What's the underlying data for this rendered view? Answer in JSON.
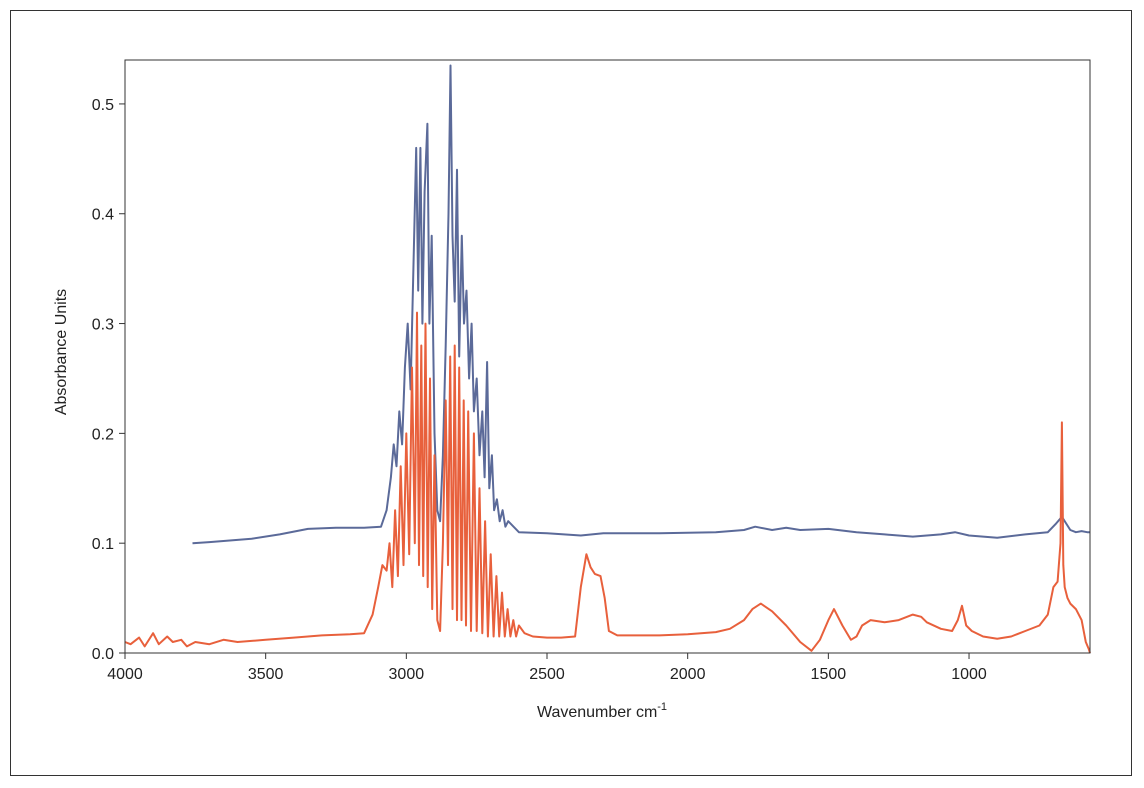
{
  "chart_data": {
    "type": "line",
    "title": "",
    "xlabel": "Wavenumber cm",
    "xlabel_superscript": "-1",
    "ylabel": "Absorbance Units",
    "xlim": [
      4000,
      570
    ],
    "ylim": [
      0.0,
      0.54
    ],
    "x_reversed": true,
    "grid": false,
    "legend": "none",
    "x_ticks": [
      "4000",
      "3500",
      "3000",
      "2500",
      "2000",
      "1500",
      "1000"
    ],
    "x_tick_values": [
      4000,
      3500,
      3000,
      2500,
      2000,
      1500,
      1000
    ],
    "y_ticks": [
      "0.0",
      "0.1",
      "0.2",
      "0.3",
      "0.4",
      "0.5"
    ],
    "y_tick_values": [
      0.0,
      0.1,
      0.2,
      0.3,
      0.4,
      0.5
    ],
    "series": [
      {
        "color": "#5b6a99",
        "x": [
          3760,
          3700,
          3650,
          3550,
          3450,
          3350,
          3250,
          3150,
          3090,
          3070,
          3055,
          3045,
          3035,
          3025,
          3015,
          3005,
          2995,
          2985,
          2975,
          2965,
          2958,
          2950,
          2943,
          2935,
          2925,
          2918,
          2910,
          2900,
          2890,
          2880,
          2870,
          2860,
          2850,
          2843,
          2836,
          2828,
          2820,
          2812,
          2803,
          2795,
          2786,
          2777,
          2768,
          2760,
          2750,
          2740,
          2730,
          2722,
          2713,
          2705,
          2696,
          2688,
          2678,
          2668,
          2658,
          2648,
          2638,
          2600,
          2500,
          2380,
          2300,
          2100,
          1900,
          1800,
          1760,
          1700,
          1650,
          1600,
          1500,
          1400,
          1300,
          1200,
          1100,
          1050,
          1000,
          900,
          800,
          720,
          690,
          670,
          655,
          640,
          620,
          600,
          580,
          570
        ],
        "y": [
          0.1,
          0.101,
          0.102,
          0.104,
          0.108,
          0.113,
          0.114,
          0.114,
          0.115,
          0.13,
          0.16,
          0.19,
          0.17,
          0.22,
          0.19,
          0.26,
          0.3,
          0.24,
          0.35,
          0.46,
          0.33,
          0.46,
          0.3,
          0.42,
          0.482,
          0.3,
          0.38,
          0.2,
          0.13,
          0.12,
          0.18,
          0.28,
          0.4,
          0.535,
          0.38,
          0.32,
          0.44,
          0.27,
          0.38,
          0.3,
          0.33,
          0.25,
          0.3,
          0.22,
          0.25,
          0.18,
          0.22,
          0.16,
          0.265,
          0.15,
          0.18,
          0.13,
          0.14,
          0.12,
          0.13,
          0.115,
          0.12,
          0.11,
          0.109,
          0.107,
          0.109,
          0.109,
          0.11,
          0.112,
          0.115,
          0.112,
          0.114,
          0.112,
          0.113,
          0.11,
          0.108,
          0.106,
          0.108,
          0.11,
          0.107,
          0.105,
          0.108,
          0.11,
          0.118,
          0.124,
          0.118,
          0.112,
          0.11,
          0.111,
          0.11,
          0.11
        ]
      },
      {
        "color": "#e8603c",
        "x": [
          4000,
          3980,
          3950,
          3930,
          3900,
          3880,
          3850,
          3830,
          3800,
          3780,
          3750,
          3700,
          3650,
          3600,
          3550,
          3500,
          3400,
          3300,
          3200,
          3150,
          3120,
          3100,
          3085,
          3070,
          3060,
          3050,
          3040,
          3030,
          3020,
          3010,
          3000,
          2990,
          2980,
          2970,
          2962,
          2955,
          2947,
          2940,
          2932,
          2924,
          2916,
          2908,
          2900,
          2890,
          2880,
          2870,
          2860,
          2852,
          2844,
          2836,
          2828,
          2820,
          2812,
          2804,
          2796,
          2788,
          2780,
          2770,
          2760,
          2750,
          2740,
          2730,
          2720,
          2710,
          2700,
          2690,
          2680,
          2670,
          2660,
          2650,
          2640,
          2630,
          2620,
          2610,
          2600,
          2580,
          2550,
          2500,
          2450,
          2400,
          2380,
          2360,
          2345,
          2330,
          2310,
          2295,
          2280,
          2250,
          2200,
          2100,
          2000,
          1900,
          1850,
          1800,
          1770,
          1740,
          1700,
          1650,
          1600,
          1560,
          1530,
          1500,
          1480,
          1450,
          1420,
          1400,
          1380,
          1350,
          1300,
          1250,
          1200,
          1170,
          1150,
          1100,
          1060,
          1040,
          1025,
          1010,
          990,
          950,
          900,
          850,
          800,
          750,
          720,
          700,
          685,
          675,
          670,
          665,
          660,
          650,
          640,
          620,
          600,
          585,
          575,
          570
        ],
        "y": [
          0.01,
          0.008,
          0.014,
          0.006,
          0.018,
          0.008,
          0.015,
          0.01,
          0.012,
          0.006,
          0.01,
          0.008,
          0.012,
          0.01,
          0.011,
          0.012,
          0.014,
          0.016,
          0.017,
          0.018,
          0.035,
          0.06,
          0.08,
          0.075,
          0.1,
          0.06,
          0.13,
          0.07,
          0.17,
          0.08,
          0.2,
          0.09,
          0.26,
          0.1,
          0.31,
          0.08,
          0.28,
          0.07,
          0.3,
          0.06,
          0.25,
          0.04,
          0.18,
          0.03,
          0.02,
          0.1,
          0.23,
          0.08,
          0.27,
          0.04,
          0.28,
          0.03,
          0.26,
          0.03,
          0.23,
          0.025,
          0.22,
          0.02,
          0.2,
          0.02,
          0.15,
          0.018,
          0.12,
          0.015,
          0.09,
          0.015,
          0.07,
          0.015,
          0.055,
          0.015,
          0.04,
          0.015,
          0.03,
          0.015,
          0.025,
          0.018,
          0.015,
          0.014,
          0.014,
          0.015,
          0.06,
          0.09,
          0.078,
          0.072,
          0.07,
          0.05,
          0.02,
          0.016,
          0.016,
          0.016,
          0.017,
          0.019,
          0.022,
          0.03,
          0.04,
          0.045,
          0.038,
          0.025,
          0.01,
          0.002,
          0.012,
          0.03,
          0.04,
          0.025,
          0.012,
          0.015,
          0.025,
          0.03,
          0.028,
          0.03,
          0.035,
          0.033,
          0.028,
          0.022,
          0.02,
          0.03,
          0.043,
          0.025,
          0.02,
          0.015,
          0.013,
          0.015,
          0.02,
          0.025,
          0.035,
          0.06,
          0.065,
          0.1,
          0.21,
          0.08,
          0.06,
          0.05,
          0.045,
          0.04,
          0.03,
          0.01,
          0.004,
          0.0
        ]
      }
    ]
  }
}
